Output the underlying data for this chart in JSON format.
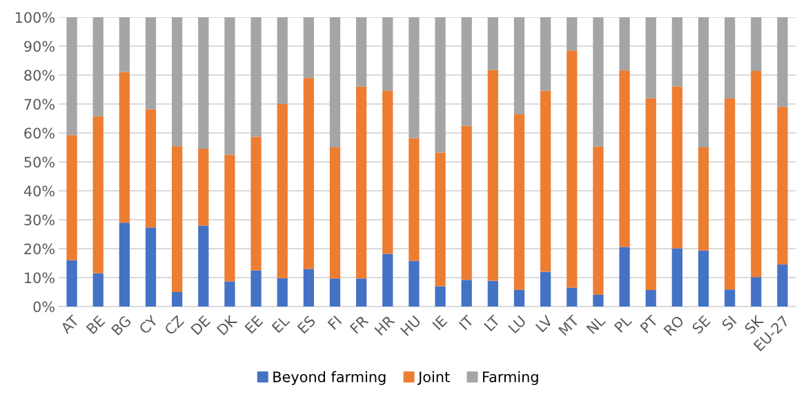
{
  "chart_data": {
    "type": "bar",
    "stacked": true,
    "categories": [
      "AT",
      "BE",
      "BG",
      "CY",
      "CZ",
      "DE",
      "DK",
      "EE",
      "EL",
      "ES",
      "FI",
      "FR",
      "HR",
      "HU",
      "IE",
      "IT",
      "LT",
      "LU",
      "LV",
      "MT",
      "NL",
      "PL",
      "PT",
      "RO",
      "SE",
      "SI",
      "SK",
      "EU-27"
    ],
    "series": [
      {
        "name": "Beyond farming",
        "color": "#4472c4",
        "values": [
          16,
          11.5,
          29,
          27.3,
          5,
          28,
          8.7,
          12.5,
          9.8,
          13,
          9.7,
          9.7,
          18.2,
          15.8,
          7,
          9.2,
          8.9,
          5.8,
          12,
          6.5,
          4.1,
          20.6,
          5.7,
          20.1,
          19.4,
          5.9,
          10.2,
          14.5
        ]
      },
      {
        "name": "Joint",
        "color": "#ed7d31",
        "values": [
          43.2,
          54.3,
          52,
          40.9,
          50.4,
          26.5,
          43.8,
          46.2,
          60.2,
          66,
          45.3,
          66.3,
          56.4,
          42.4,
          46.2,
          53.3,
          72.9,
          60.6,
          62.6,
          82,
          51.2,
          61,
          66.3,
          56,
          35.6,
          66,
          71.2,
          54.5
        ]
      },
      {
        "name": "Farming",
        "color": "#a5a5a5",
        "values": [
          40.8,
          34.2,
          19,
          31.8,
          44.6,
          45.5,
          47.5,
          41.3,
          30,
          21,
          45,
          24,
          25.4,
          41.8,
          46.8,
          37.5,
          18.2,
          33.6,
          25.4,
          11.5,
          44.7,
          18.4,
          28,
          23.9,
          45,
          28.1,
          18.6,
          31
        ]
      }
    ],
    "ylim": [
      0,
      100
    ],
    "yticks": [
      {
        "value": 0,
        "label": "0%"
      },
      {
        "value": 10,
        "label": "10%"
      },
      {
        "value": 20,
        "label": "20%"
      },
      {
        "value": 30,
        "label": "30%"
      },
      {
        "value": 40,
        "label": "40%"
      },
      {
        "value": 50,
        "label": "50%"
      },
      {
        "value": 60,
        "label": "60%"
      },
      {
        "value": 70,
        "label": "70%"
      },
      {
        "value": 80,
        "label": "80%"
      },
      {
        "value": 90,
        "label": "90%"
      },
      {
        "value": 100,
        "label": "100%"
      }
    ],
    "grid": "y",
    "legend": "bottom"
  }
}
